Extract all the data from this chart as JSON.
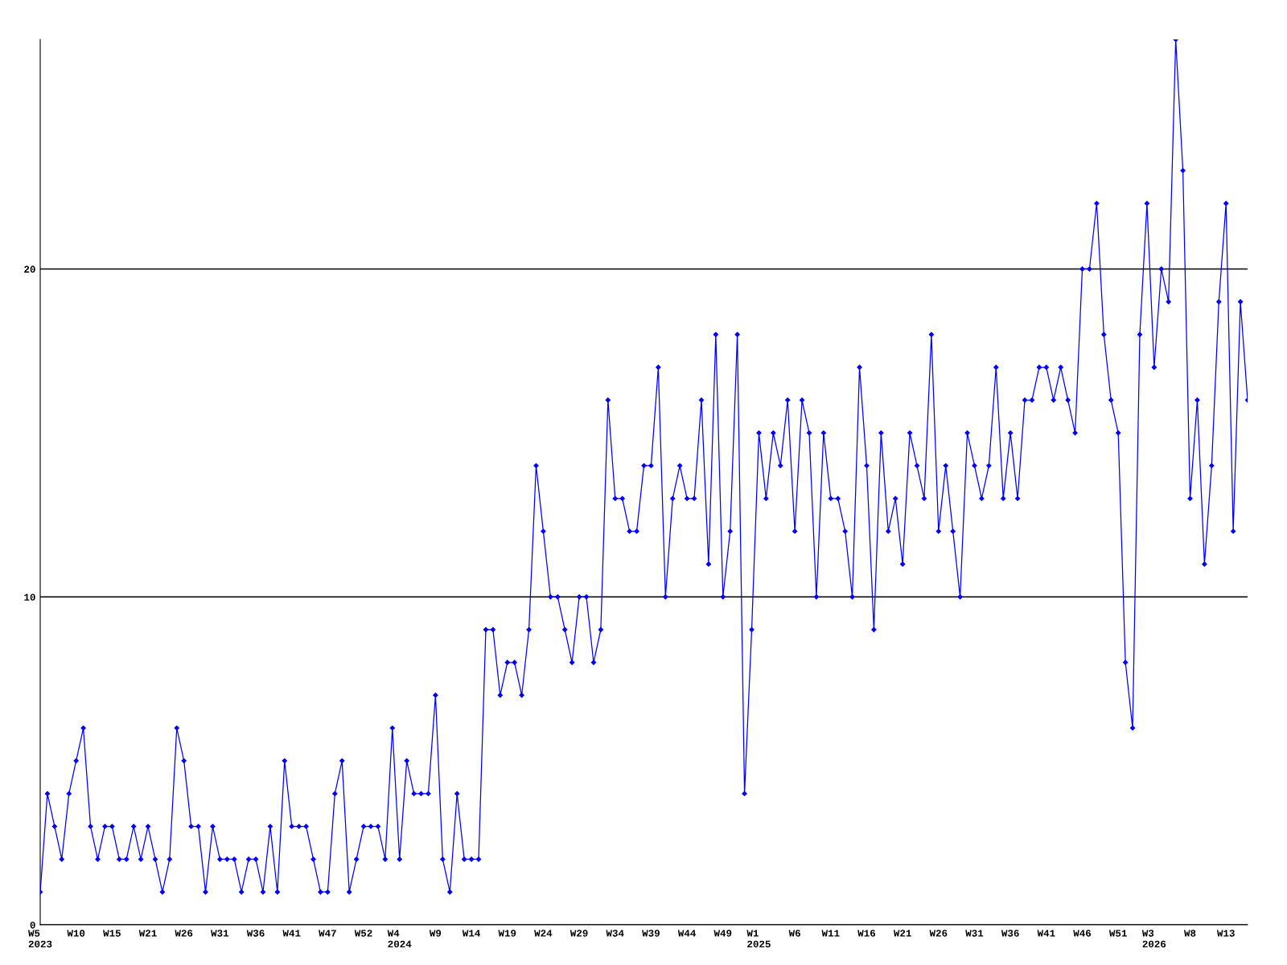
{
  "chart_data": {
    "type": "line",
    "categories": [
      "W5\n2023",
      null,
      null,
      null,
      null,
      "W10",
      null,
      null,
      null,
      null,
      "W15",
      null,
      null,
      null,
      null,
      "W21",
      null,
      null,
      null,
      null,
      "W26",
      null,
      null,
      null,
      null,
      "W31",
      null,
      null,
      null,
      null,
      "W36",
      null,
      null,
      null,
      null,
      "W41",
      null,
      null,
      null,
      null,
      "W47",
      null,
      null,
      null,
      null,
      "W52",
      null,
      null,
      null,
      null,
      "W4\n2024",
      null,
      null,
      null,
      null,
      "W9",
      null,
      null,
      null,
      null,
      "W14",
      null,
      null,
      null,
      null,
      "W19",
      null,
      null,
      null,
      null,
      "W24",
      null,
      null,
      null,
      null,
      "W29",
      null,
      null,
      null,
      null,
      "W34",
      null,
      null,
      null,
      null,
      "W39",
      null,
      null,
      null,
      null,
      "W44",
      null,
      null,
      null,
      null,
      "W49",
      null,
      null,
      null,
      null,
      "W1\n2025",
      null,
      null,
      null,
      null,
      "W6",
      null,
      null,
      null,
      null,
      "W11",
      null,
      null,
      null,
      null,
      "W16",
      null,
      null,
      null,
      null,
      "W21",
      null,
      null,
      null,
      null,
      "W26",
      null,
      null,
      null,
      null,
      "W31",
      null,
      null,
      null,
      null,
      "W36",
      null,
      null,
      null,
      null,
      "W41",
      null,
      null,
      null,
      null,
      "W46",
      null,
      null,
      null,
      null,
      "W51",
      null,
      null,
      null,
      null,
      "W3\n2026",
      null,
      null,
      null,
      null,
      "W8",
      null,
      null,
      null,
      null,
      "W13",
      null,
      null,
      null
    ],
    "series": [
      {
        "color": "#0000ff",
        "values": [
          1,
          4,
          3,
          2,
          4,
          5,
          6,
          3,
          2,
          3,
          3,
          2,
          2,
          3,
          2,
          3,
          2,
          1,
          2,
          6,
          5,
          3,
          3,
          1,
          3,
          2,
          2,
          2,
          1,
          2,
          2,
          1,
          3,
          1,
          5,
          3,
          3,
          3,
          2,
          1,
          1,
          4,
          5,
          1,
          2,
          3,
          3,
          3,
          2,
          6,
          2,
          5,
          4,
          4,
          4,
          7,
          2,
          1,
          4,
          2,
          2,
          2,
          9,
          9,
          7,
          8,
          8,
          7,
          9,
          14,
          12,
          10,
          10,
          9,
          8,
          10,
          10,
          8,
          9,
          16,
          13,
          13,
          12,
          12,
          14,
          14,
          17,
          10,
          13,
          14,
          13,
          13,
          16,
          11,
          18,
          10,
          12,
          18,
          4,
          9,
          15,
          13,
          15,
          14,
          16,
          12,
          16,
          15,
          10,
          15,
          13,
          13,
          12,
          10,
          17,
          14,
          9,
          15,
          12,
          13,
          11,
          15,
          14,
          13,
          18,
          12,
          14,
          12,
          10,
          15,
          14,
          13,
          14,
          17,
          13,
          15,
          13,
          16,
          16,
          17,
          17,
          16,
          17,
          16,
          15,
          20,
          20,
          22,
          18,
          16,
          15,
          8,
          6,
          18,
          22,
          17,
          20,
          19,
          27,
          23,
          13,
          16,
          11,
          14,
          19,
          22,
          12,
          19,
          16
        ]
      }
    ],
    "ylim": [
      0,
      27
    ],
    "yticks": [
      0,
      10,
      20
    ],
    "grid": "y",
    "marker": "diamond",
    "line_style": "solid",
    "legend": false
  }
}
